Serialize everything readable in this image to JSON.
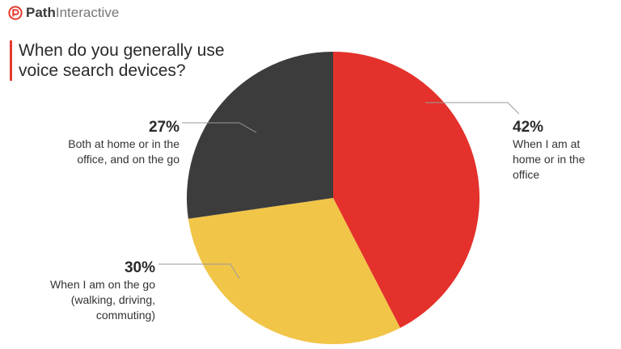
{
  "brand": {
    "name_bold": "Path",
    "name_light": "Interactive",
    "accent": "#e53a2e"
  },
  "chart_data": {
    "type": "pie",
    "title": "When do you generally use voice search devices?",
    "slices": [
      {
        "label": "When I am at home or in the office",
        "pct_label": "42%",
        "value": 42,
        "color": "#e4312b"
      },
      {
        "label": "When I am on the go (walking, driving, commuting)",
        "pct_label": "30%",
        "value": 30,
        "color": "#f1c548"
      },
      {
        "label": "Both at home or in the office, and on the go",
        "pct_label": "27%",
        "value": 27,
        "color": "#3c3c3c"
      }
    ]
  }
}
